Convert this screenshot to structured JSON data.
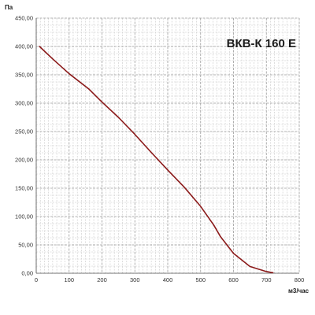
{
  "chart_data": {
    "type": "line",
    "title": "ВКВ-К 160 Е",
    "xlabel": "м3/час",
    "ylabel": "Па",
    "xlim": [
      0,
      800
    ],
    "ylim": [
      0,
      450
    ],
    "x_ticks": [
      0,
      100,
      200,
      300,
      400,
      500,
      600,
      700,
      800
    ],
    "y_ticks": [
      "0,00",
      "50,00",
      "100,00",
      "150,00",
      "200,00",
      "250,00",
      "300,00",
      "350,00",
      "400,00",
      "450,00"
    ],
    "grid": true,
    "series": [
      {
        "color": "#8b1a1a",
        "x": [
          10,
          50,
          100,
          160,
          200,
          250,
          300,
          350,
          400,
          450,
          500,
          540,
          560,
          600,
          650,
          700,
          720
        ],
        "y": [
          400,
          378,
          352,
          325,
          302,
          275,
          245,
          213,
          182,
          152,
          118,
          85,
          65,
          35,
          12,
          3,
          1
        ]
      }
    ]
  }
}
